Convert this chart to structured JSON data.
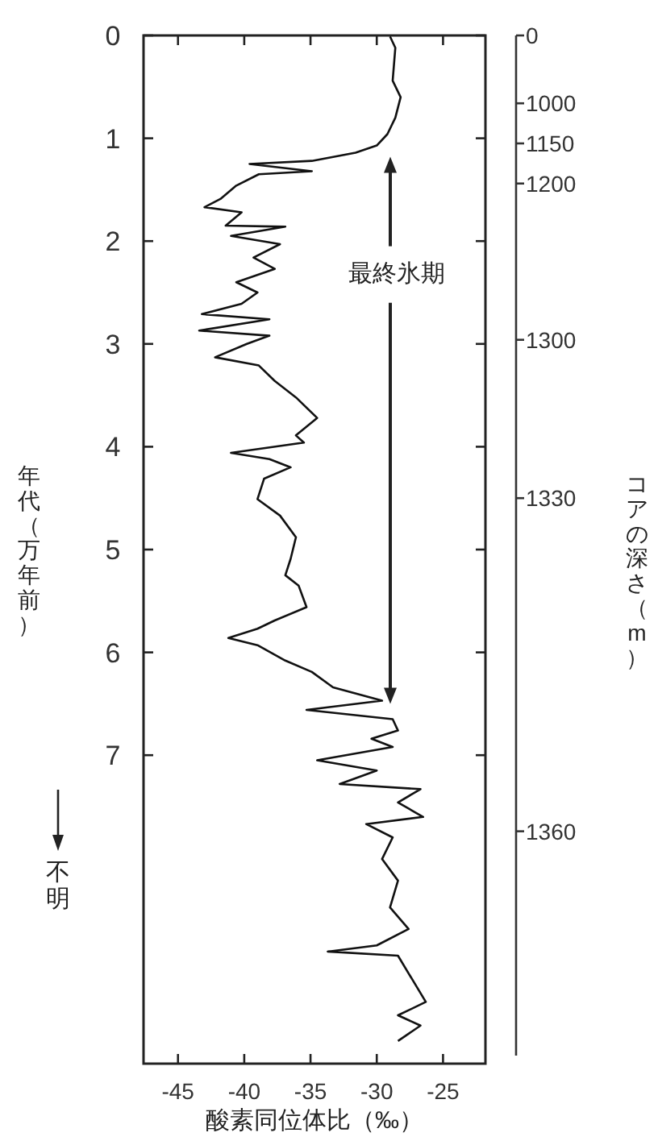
{
  "chart_data": {
    "type": "line",
    "orientation": "horizontal",
    "xlabel": "酸素同位体比（‰）",
    "ylabel": "年代（万年前）",
    "annotations": [
      "最終氷期",
      "不明",
      "コアの深さ（m）",
      "0",
      "1000",
      "1150",
      "1200",
      "1300",
      "1330",
      "1360"
    ],
    "xlim": [
      -47.6,
      -21.8
    ],
    "xticks": [
      -45,
      -40,
      -35,
      -30,
      -25
    ],
    "ylim": [
      10,
      0
    ],
    "yticks": [
      0,
      1,
      2,
      3,
      4,
      5,
      6,
      7
    ],
    "series": [
      {
        "color": "#111111",
        "x": [
          0.01,
          0.12,
          0.44,
          0.6,
          0.8,
          0.96,
          1.07,
          1.14,
          1.22,
          1.25,
          1.32,
          1.35,
          1.46,
          1.59,
          1.67,
          1.72,
          1.85,
          1.86,
          1.95,
          2.03,
          2.16,
          2.27,
          2.4,
          2.5,
          2.61,
          2.71,
          2.76,
          2.87,
          2.92,
          3.0,
          3.13,
          3.21,
          3.36,
          3.52,
          3.72,
          3.89,
          3.96,
          4.06,
          4.12,
          4.2,
          4.31,
          4.51,
          4.67,
          4.88,
          5.09,
          5.25,
          5.35,
          5.56,
          5.69,
          5.77,
          5.86,
          5.93,
          6.08,
          6.19,
          6.34,
          6.47,
          6.56,
          6.65,
          6.76,
          6.84,
          6.92,
          7.05,
          7.15,
          7.28,
          7.33,
          7.46,
          7.6,
          7.67,
          7.8,
          8.01,
          8.22,
          8.48,
          8.69,
          8.85,
          8.91,
          8.95,
          9.4,
          9.53,
          9.63,
          9.78
        ],
        "values": [
          -29.0,
          -28.6,
          -28.8,
          -28.2,
          -28.6,
          -29.2,
          -30,
          -31.6,
          -34.9,
          -39.6,
          -34.9,
          -38.9,
          -40.6,
          -41.8,
          -43.0,
          -40.2,
          -41.4,
          -36.9,
          -41.0,
          -37.3,
          -39.3,
          -37.7,
          -40.6,
          -39.0,
          -40.2,
          -43.2,
          -38.1,
          -43.4,
          -38.1,
          -39.8,
          -42.2,
          -38.9,
          -37.7,
          -36.1,
          -34.5,
          -36.1,
          -35.5,
          -41.0,
          -38.1,
          -36.5,
          -38.5,
          -39.0,
          -37.3,
          -36.1,
          -36.5,
          -36.9,
          -35.9,
          -35.3,
          -37.7,
          -39.0,
          -41.2,
          -39.0,
          -36.9,
          -34.9,
          -33.3,
          -29.6,
          -35.3,
          -28.8,
          -28.4,
          -30.4,
          -28.8,
          -34.5,
          -30,
          -32.8,
          -26.7,
          -28.4,
          -26.5,
          -30.8,
          -28.8,
          -29.6,
          -28.4,
          -29.0,
          -27.6,
          -30,
          -33.7,
          -28.4,
          -26.3,
          -28.4,
          -26.7,
          -28.4
        ]
      }
    ]
  }
}
